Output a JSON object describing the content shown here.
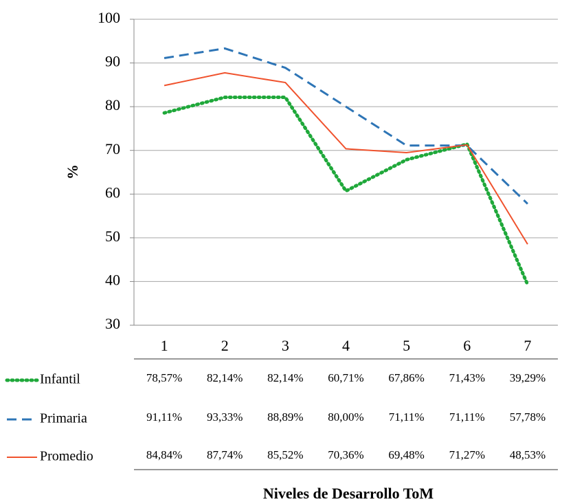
{
  "chart_data": {
    "type": "line",
    "y_label": "%",
    "x_label": "Niveles de Desarrollo ToM",
    "categories": [
      "1",
      "2",
      "3",
      "4",
      "5",
      "6",
      "7"
    ],
    "series": [
      {
        "name": "Infantil",
        "color": "#1fa83a",
        "style": "dotted",
        "values": [
          78.57,
          82.14,
          82.14,
          60.71,
          67.86,
          71.43,
          39.29
        ],
        "value_labels": [
          "78,57%",
          "82,14%",
          "82,14%",
          "60,71%",
          "67,86%",
          "71,43%",
          "39,29%"
        ]
      },
      {
        "name": "Primaria",
        "color": "#2e75b6",
        "style": "dashed",
        "values": [
          91.11,
          93.33,
          88.89,
          80.0,
          71.11,
          71.11,
          57.78
        ],
        "value_labels": [
          "91,11%",
          "93,33%",
          "88,89%",
          "80,00%",
          "71,11%",
          "71,11%",
          "57,78%"
        ]
      },
      {
        "name": "Promedio",
        "color": "#f0522d",
        "style": "solid",
        "values": [
          84.84,
          87.74,
          85.52,
          70.36,
          69.48,
          71.27,
          48.53
        ],
        "value_labels": [
          "84,84%",
          "87,74%",
          "85,52%",
          "70,36%",
          "69,48%",
          "71,27%",
          "48,53%"
        ]
      }
    ],
    "ylim": [
      30,
      100
    ],
    "yticks": [
      30,
      40,
      50,
      60,
      70,
      80,
      90,
      100
    ],
    "grid": true
  }
}
